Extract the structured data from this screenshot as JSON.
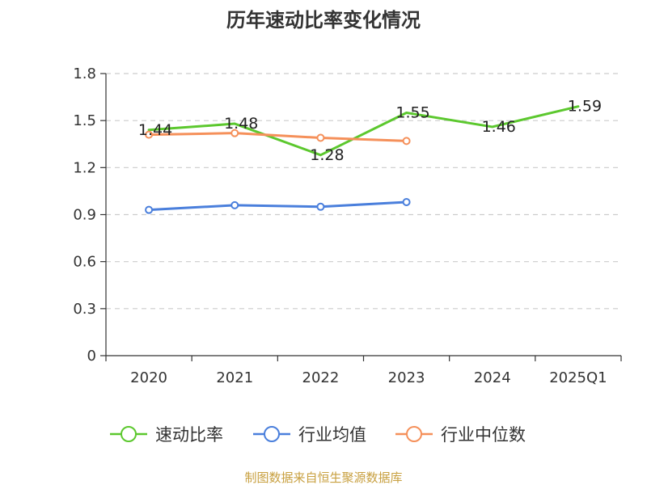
{
  "chart_data": {
    "type": "line",
    "title": "历年速动比率变化情况",
    "categories": [
      "2020",
      "2021",
      "2022",
      "2023",
      "2024",
      "2025Q1"
    ],
    "y_ticks": [
      "0",
      "0.3",
      "0.6",
      "0.9",
      "1.2",
      "1.5",
      "1.8"
    ],
    "ylim": [
      0,
      1.8
    ],
    "grid": true,
    "legend_position": "bottom",
    "series": [
      {
        "name": "速动比率",
        "color": "#5cc82e",
        "values": [
          1.44,
          1.48,
          1.28,
          1.55,
          1.46,
          1.59
        ],
        "labels": [
          "1.44",
          "1.48",
          "1.28",
          "1.55",
          "1.46",
          "1.59"
        ],
        "show_markers": false
      },
      {
        "name": "行业均值",
        "color": "#4a7fdc",
        "values": [
          0.93,
          0.96,
          0.95,
          0.98,
          null,
          null
        ],
        "show_markers": true
      },
      {
        "name": "行业中位数",
        "color": "#f5905a",
        "values": [
          1.41,
          1.42,
          1.39,
          1.37,
          null,
          null
        ],
        "show_markers": true
      }
    ],
    "source": "制图数据来自恒生聚源数据库"
  }
}
